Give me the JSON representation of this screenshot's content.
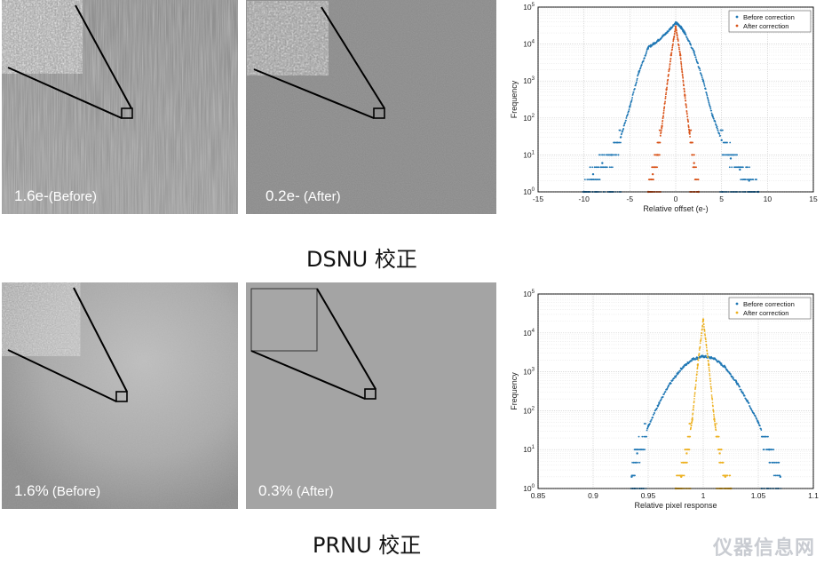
{
  "images": {
    "dsnu_before": {
      "value": "1.6e-",
      "tag": "(Before)"
    },
    "dsnu_after": {
      "value": "0.2e-",
      "tag": " (After)"
    },
    "prnu_before": {
      "value": "1.6%",
      "tag": " (Before)"
    },
    "prnu_after": {
      "value": "0.3%",
      "tag": " (After)"
    }
  },
  "captions": {
    "dsnu": "DSNU 校正",
    "prnu": "PRNU 校正"
  },
  "watermark": "仪器信息网",
  "colors": {
    "before": "#1f77b4",
    "after_dsnu": "#d9541a",
    "after_prnu": "#edb120"
  },
  "chart_data": [
    {
      "type": "scatter",
      "xlabel": "Relative offset (e-)",
      "ylabel": "Frequency",
      "xlim": [
        -15,
        15
      ],
      "ylim": [
        1,
        100000
      ],
      "yscale": "log",
      "xticks": [
        -15,
        -10,
        -5,
        0,
        5,
        10,
        15
      ],
      "yticks": [
        "10^0",
        "10^1",
        "10^2",
        "10^3",
        "10^4",
        "10^5"
      ],
      "grid": true,
      "legend": "top-right",
      "series": [
        {
          "name": "Before correction",
          "x": [
            -10,
            -9,
            -8,
            -7,
            -6,
            -5,
            -4,
            -3,
            -2,
            -1,
            0,
            0.5,
            1,
            2,
            3,
            4,
            5,
            6,
            7,
            8,
            9
          ],
          "y": [
            1,
            3,
            6,
            10,
            30,
            200,
            1800,
            8000,
            12000,
            20000,
            38000,
            30000,
            20000,
            6000,
            1000,
            120,
            25,
            8,
            4,
            2,
            1
          ]
        },
        {
          "name": "After correction",
          "x": [
            -3,
            -2.5,
            -2,
            -1.5,
            -1,
            -0.5,
            0,
            0.5,
            1,
            1.5,
            2,
            2.5
          ],
          "y": [
            1,
            3,
            10,
            60,
            600,
            5000,
            30000,
            5000,
            400,
            40,
            6,
            1
          ]
        }
      ]
    },
    {
      "type": "scatter",
      "xlabel": "Relative pixel response",
      "ylabel": "Frequency",
      "xlim": [
        0.85,
        1.1
      ],
      "ylim": [
        1,
        100000
      ],
      "yscale": "log",
      "xticks": [
        "0.85",
        "0.9",
        "0.95",
        "1",
        "1.05",
        "1.1"
      ],
      "yticks": [
        "10^0",
        "10^1",
        "10^2",
        "10^3",
        "10^4",
        "10^5"
      ],
      "grid": true,
      "legend": "top-right",
      "series": [
        {
          "name": "Before correction",
          "x": [
            0.935,
            0.94,
            0.95,
            0.96,
            0.97,
            0.98,
            0.99,
            1.0,
            1.01,
            1.02,
            1.03,
            1.04,
            1.05,
            1.06,
            1.07
          ],
          "y": [
            2,
            8,
            40,
            160,
            500,
            1200,
            2100,
            2500,
            2200,
            1300,
            550,
            180,
            50,
            10,
            2
          ]
        },
        {
          "name": "After correction",
          "x": [
            0.975,
            0.98,
            0.985,
            0.99,
            0.995,
            1.0,
            1.005,
            1.01,
            1.015,
            1.02,
            1.025
          ],
          "y": [
            1,
            2,
            8,
            60,
            1500,
            22000,
            1500,
            60,
            8,
            2,
            1
          ]
        }
      ]
    }
  ]
}
